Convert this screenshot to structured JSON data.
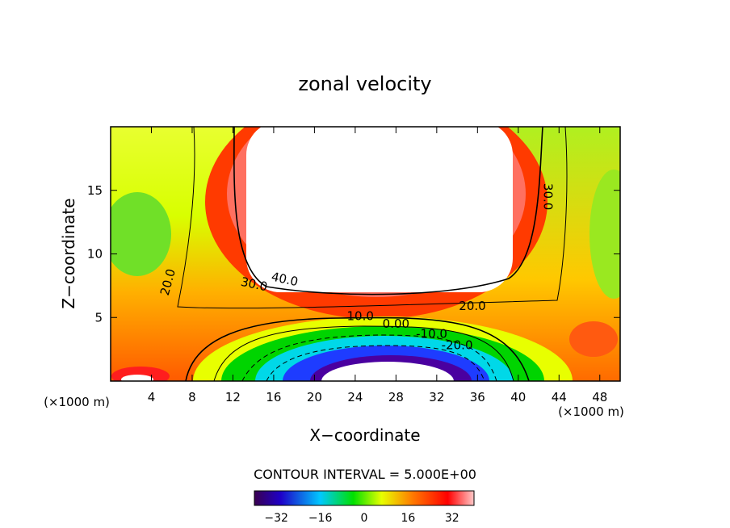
{
  "chart_data": {
    "type": "heatmap",
    "title": "zonal velocity",
    "xlabel": "X−coordinate",
    "ylabel": "Z−coordinate",
    "x_unit_left": "(×1000 m)",
    "x_unit_right": "(×1000 m)",
    "xlim": [
      0,
      50
    ],
    "ylim": [
      0,
      20
    ],
    "x_ticks": [
      4,
      8,
      12,
      16,
      20,
      24,
      28,
      32,
      36,
      40,
      44,
      48
    ],
    "y_ticks": [
      5,
      10,
      15
    ],
    "contour_interval_label": "CONTOUR INTERVAL = 5.000E+00",
    "colorbar": {
      "min": -40,
      "max": 40,
      "ticks": [
        "−32",
        "−16",
        "0",
        "16",
        "32"
      ]
    },
    "contour_labels": [
      {
        "text": "40.0",
        "x": 17.0,
        "y": 7.7,
        "rot": 12
      },
      {
        "text": "30.0",
        "x": 14.0,
        "y": 7.3,
        "rot": 12
      },
      {
        "text": "30.0",
        "x": 42.5,
        "y": 14.5,
        "rot": 90
      },
      {
        "text": "20.0",
        "x": 6.0,
        "y": 7.7,
        "rot": -75
      },
      {
        "text": "20.0",
        "x": 35.5,
        "y": 5.6,
        "rot": 0
      },
      {
        "text": "10.0",
        "x": 24.5,
        "y": 4.8,
        "rot": 0
      },
      {
        "text": "0.00",
        "x": 28.0,
        "y": 4.2,
        "rot": 0
      },
      {
        "text": "-10.0",
        "x": 31.5,
        "y": 3.4,
        "rot": 0
      },
      {
        "text": "-20.0",
        "x": 34.0,
        "y": 2.5,
        "rot": 0
      }
    ],
    "palette": [
      "#3a0050",
      "#1e00c8",
      "#00c8ff",
      "#00e000",
      "#e8ff00",
      "#ff7a00",
      "#ff0000",
      "#ffc8c8"
    ]
  }
}
